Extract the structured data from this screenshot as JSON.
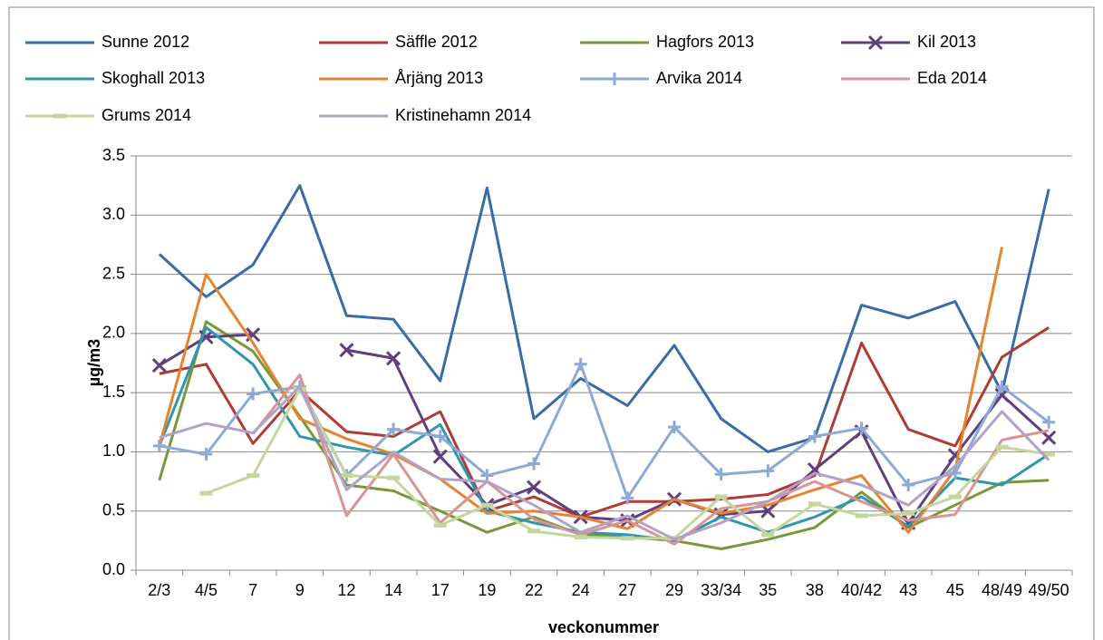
{
  "chart_data": {
    "type": "line",
    "x_label": "veckonummer",
    "y_label": "µg/m3",
    "categories": [
      "2/3",
      "4/5",
      "7",
      "9",
      "12",
      "14",
      "17",
      "19",
      "22",
      "24",
      "27",
      "29",
      "33/34",
      "35",
      "38",
      "40/42",
      "43",
      "45",
      "48/49",
      "49/50"
    ],
    "ylim": [
      0,
      3.5
    ],
    "yticks": [
      {
        "value": 0,
        "label": "0.0"
      },
      0.5,
      {
        "value": 1,
        "label": "1.0"
      },
      1.5,
      {
        "value": 2,
        "label": "2.0"
      },
      2.5,
      {
        "value": 3,
        "label": "3.0"
      },
      3.5
    ],
    "grid": true,
    "legend": "top",
    "series": [
      {
        "name": "Sunne 2012",
        "color": "#386ba8",
        "marker": "none",
        "values": [
          2.67,
          2.31,
          2.58,
          3.25,
          2.15,
          2.12,
          1.6,
          3.23,
          1.28,
          1.62,
          1.39,
          1.9,
          1.28,
          1.0,
          1.12,
          2.24,
          2.13,
          2.27,
          1.5,
          3.22
        ]
      },
      {
        "name": "Säffle 2012",
        "color": "#b03b36",
        "marker": "none",
        "values": [
          1.66,
          1.74,
          1.07,
          1.52,
          1.17,
          1.13,
          1.34,
          0.5,
          0.62,
          0.45,
          0.58,
          0.58,
          0.6,
          0.64,
          0.8,
          1.92,
          1.19,
          1.05,
          1.8,
          2.05
        ]
      },
      {
        "name": "Hagfors 2013",
        "color": "#78993a",
        "marker": "none",
        "values": [
          0.76,
          2.1,
          1.85,
          1.3,
          0.72,
          0.67,
          0.5,
          0.32,
          0.45,
          0.3,
          0.28,
          0.25,
          0.18,
          0.26,
          0.36,
          0.66,
          0.36,
          0.55,
          0.74,
          0.76
        ]
      },
      {
        "name": "Kil 2013",
        "color": "#5f3f7d",
        "marker": "x",
        "values": [
          1.73,
          1.97,
          1.99,
          null,
          1.86,
          1.79,
          0.96,
          0.55,
          0.7,
          0.45,
          0.42,
          0.6,
          0.47,
          0.5,
          0.85,
          1.17,
          0.4,
          0.97,
          1.48,
          1.12
        ]
      },
      {
        "name": "Skoghall 2013",
        "color": "#2f96ad",
        "marker": "none",
        "values": [
          1.05,
          2.05,
          1.74,
          1.13,
          1.04,
          0.97,
          1.23,
          0.5,
          0.4,
          0.32,
          0.3,
          0.25,
          0.45,
          0.32,
          0.45,
          0.62,
          0.37,
          0.78,
          0.72,
          0.98
        ]
      },
      {
        "name": "Årjäng 2013",
        "color": "#e5832e",
        "marker": "none",
        "values": [
          1.05,
          2.5,
          1.92,
          1.28,
          1.11,
          0.98,
          0.77,
          0.48,
          0.5,
          0.45,
          0.35,
          0.6,
          0.48,
          0.55,
          0.68,
          0.8,
          0.32,
          0.85,
          2.73,
          null
        ]
      },
      {
        "name": "Arvika 2014",
        "color": "#8ea9d6",
        "marker": "plus",
        "values": [
          1.05,
          0.98,
          1.49,
          1.55,
          0.8,
          1.19,
          1.13,
          0.8,
          0.9,
          1.74,
          0.61,
          1.21,
          0.81,
          0.84,
          1.13,
          1.2,
          0.72,
          0.82,
          1.55,
          1.25
        ]
      },
      {
        "name": "Eda 2014",
        "color": "#d99593",
        "marker": "none",
        "values": [
          null,
          null,
          1.15,
          1.65,
          0.46,
          0.98,
          0.4,
          0.75,
          0.43,
          0.3,
          0.42,
          0.22,
          0.52,
          0.58,
          0.75,
          0.58,
          0.42,
          0.47,
          1.1,
          1.18
        ]
      },
      {
        "name": "Grums 2014",
        "color": "#c3d69b",
        "marker": "dash",
        "values": [
          null,
          0.65,
          0.8,
          1.53,
          0.8,
          0.78,
          0.38,
          0.55,
          0.33,
          0.28,
          0.27,
          0.27,
          0.62,
          0.3,
          0.56,
          0.46,
          0.48,
          0.62,
          1.04,
          0.98
        ]
      },
      {
        "name": "Kristinehamn 2014",
        "color": "#b3a2c7",
        "marker": "none",
        "values": [
          1.12,
          1.24,
          1.16,
          1.55,
          0.68,
          1.0,
          0.77,
          0.75,
          0.55,
          0.32,
          0.46,
          0.26,
          0.4,
          0.58,
          0.82,
          0.72,
          0.55,
          0.88,
          1.34,
          0.93
        ]
      }
    ]
  }
}
